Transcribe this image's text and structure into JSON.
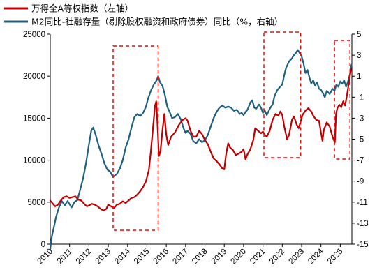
{
  "chart_data": {
    "type": "line",
    "legend": {
      "placement": "top-left",
      "items": [
        {
          "label": "万得全A等权指数（左轴）",
          "color": "#c00000"
        },
        {
          "label": "M2同比-社融存量（剔除股权融资和政府债券）同比（%，右轴）",
          "color": "#1f5f7f"
        }
      ]
    },
    "x_axis": {
      "range": [
        2010,
        2025.6
      ],
      "ticks": [
        "2010",
        "2011",
        "2012",
        "2013",
        "2014",
        "2015",
        "2016",
        "2017",
        "2018",
        "2019",
        "2020",
        "2021",
        "2022",
        "2023",
        "2024",
        "2025"
      ]
    },
    "y_left": {
      "range": [
        0,
        25000
      ],
      "ticks": [
        "0",
        "5000",
        "10000",
        "15000",
        "20000",
        "25000"
      ]
    },
    "y_right": {
      "range": [
        -15,
        5
      ],
      "ticks": [
        "-15",
        "-13",
        "-11",
        "-9",
        "-7",
        "-5",
        "-3",
        "-1",
        "1",
        "3",
        "5"
      ]
    },
    "highlight_periods": [
      {
        "x_start": 2013.25,
        "x_end": 2015.58
      },
      {
        "x_start": 2021.05,
        "x_end": 2022.95
      },
      {
        "x_start": 2024.7,
        "x_end": 2025.5
      }
    ],
    "series": [
      {
        "name": "万得全A等权指数（左轴）",
        "axis": "left",
        "color": "#c00000",
        "points": [
          [
            2010.0,
            5200
          ],
          [
            2010.1,
            4900
          ],
          [
            2010.25,
            4500
          ],
          [
            2010.4,
            4700
          ],
          [
            2010.55,
            5200
          ],
          [
            2010.7,
            5600
          ],
          [
            2010.85,
            5700
          ],
          [
            2011.0,
            5500
          ],
          [
            2011.15,
            5600
          ],
          [
            2011.3,
            5700
          ],
          [
            2011.45,
            5300
          ],
          [
            2011.6,
            5200
          ],
          [
            2011.75,
            4800
          ],
          [
            2011.9,
            4500
          ],
          [
            2012.0,
            4600
          ],
          [
            2012.15,
            4800
          ],
          [
            2012.3,
            4700
          ],
          [
            2012.45,
            4500
          ],
          [
            2012.6,
            4200
          ],
          [
            2012.75,
            4000
          ],
          [
            2012.9,
            4200
          ],
          [
            2013.0,
            4700
          ],
          [
            2013.15,
            4500
          ],
          [
            2013.3,
            4300
          ],
          [
            2013.45,
            4700
          ],
          [
            2013.6,
            4800
          ],
          [
            2013.75,
            5100
          ],
          [
            2013.9,
            4900
          ],
          [
            2014.05,
            5200
          ],
          [
            2014.2,
            5500
          ],
          [
            2014.35,
            5600
          ],
          [
            2014.5,
            5900
          ],
          [
            2014.65,
            6300
          ],
          [
            2014.8,
            6800
          ],
          [
            2014.95,
            7500
          ],
          [
            2015.1,
            8800
          ],
          [
            2015.2,
            11000
          ],
          [
            2015.32,
            14000
          ],
          [
            2015.42,
            16500
          ],
          [
            2015.48,
            17000
          ],
          [
            2015.55,
            14000
          ],
          [
            2015.62,
            10500
          ],
          [
            2015.7,
            11000
          ],
          [
            2015.8,
            13500
          ],
          [
            2015.9,
            15500
          ],
          [
            2016.0,
            13000
          ],
          [
            2016.1,
            11800
          ],
          [
            2016.25,
            12800
          ],
          [
            2016.45,
            13300
          ],
          [
            2016.65,
            14200
          ],
          [
            2016.85,
            14800
          ],
          [
            2017.0,
            15000
          ],
          [
            2017.1,
            14700
          ],
          [
            2017.25,
            13500
          ],
          [
            2017.4,
            12800
          ],
          [
            2017.55,
            12800
          ],
          [
            2017.7,
            13500
          ],
          [
            2017.85,
            13100
          ],
          [
            2018.0,
            12400
          ],
          [
            2018.15,
            11900
          ],
          [
            2018.3,
            11000
          ],
          [
            2018.45,
            10200
          ],
          [
            2018.6,
            9900
          ],
          [
            2018.75,
            9500
          ],
          [
            2018.9,
            9000
          ],
          [
            2019.0,
            8900
          ],
          [
            2019.1,
            10800
          ],
          [
            2019.2,
            12000
          ],
          [
            2019.3,
            11500
          ],
          [
            2019.45,
            11200
          ],
          [
            2019.6,
            10600
          ],
          [
            2019.75,
            10800
          ],
          [
            2019.9,
            11000
          ],
          [
            2020.0,
            11300
          ],
          [
            2020.1,
            10100
          ],
          [
            2020.2,
            10700
          ],
          [
            2020.35,
            11300
          ],
          [
            2020.5,
            12400
          ],
          [
            2020.6,
            13800
          ],
          [
            2020.75,
            13500
          ],
          [
            2020.9,
            13200
          ],
          [
            2021.0,
            13400
          ],
          [
            2021.1,
            13000
          ],
          [
            2021.2,
            12800
          ],
          [
            2021.35,
            13500
          ],
          [
            2021.5,
            14800
          ],
          [
            2021.65,
            15500
          ],
          [
            2021.8,
            15300
          ],
          [
            2021.9,
            15800
          ],
          [
            2022.0,
            15400
          ],
          [
            2022.1,
            14000
          ],
          [
            2022.25,
            12500
          ],
          [
            2022.35,
            13000
          ],
          [
            2022.5,
            14800
          ],
          [
            2022.6,
            15200
          ],
          [
            2022.75,
            14200
          ],
          [
            2022.85,
            13800
          ],
          [
            2022.95,
            14600
          ],
          [
            2023.05,
            15400
          ],
          [
            2023.2,
            15900
          ],
          [
            2023.35,
            16200
          ],
          [
            2023.5,
            15800
          ],
          [
            2023.6,
            15300
          ],
          [
            2023.75,
            14800
          ],
          [
            2023.9,
            14700
          ],
          [
            2024.0,
            13300
          ],
          [
            2024.08,
            12300
          ],
          [
            2024.15,
            13600
          ],
          [
            2024.3,
            14500
          ],
          [
            2024.45,
            14000
          ],
          [
            2024.6,
            12800
          ],
          [
            2024.72,
            12100
          ],
          [
            2024.78,
            15500
          ],
          [
            2024.85,
            16200
          ],
          [
            2024.95,
            16600
          ],
          [
            2025.05,
            16300
          ],
          [
            2025.15,
            17000
          ],
          [
            2025.25,
            16500
          ],
          [
            2025.35,
            17800
          ],
          [
            2025.45,
            19300
          ],
          [
            2025.55,
            20800
          ]
        ]
      },
      {
        "name": "M2同比-社融存量（剔除股权融资和政府债券）同比（%，右轴）",
        "axis": "right",
        "color": "#1f5f7f",
        "points": [
          [
            2010.0,
            -15.5
          ],
          [
            2010.05,
            -14.6
          ],
          [
            2010.1,
            -14.1
          ],
          [
            2010.2,
            -13.3
          ],
          [
            2010.3,
            -12.4
          ],
          [
            2010.45,
            -11.5
          ],
          [
            2010.6,
            -10.9
          ],
          [
            2010.75,
            -11.3
          ],
          [
            2010.9,
            -10.9
          ],
          [
            2011.0,
            -11.2
          ],
          [
            2011.1,
            -11.5
          ],
          [
            2011.25,
            -11.0
          ],
          [
            2011.4,
            -10.8
          ],
          [
            2011.55,
            -9.8
          ],
          [
            2011.7,
            -8.7
          ],
          [
            2011.85,
            -7.3
          ],
          [
            2012.0,
            -5.5
          ],
          [
            2012.12,
            -4.2
          ],
          [
            2012.22,
            -3.9
          ],
          [
            2012.35,
            -4.6
          ],
          [
            2012.5,
            -5.6
          ],
          [
            2012.65,
            -6.4
          ],
          [
            2012.8,
            -7.3
          ],
          [
            2012.95,
            -7.9
          ],
          [
            2013.1,
            -8.1
          ],
          [
            2013.25,
            -8.6
          ],
          [
            2013.45,
            -8.3
          ],
          [
            2013.6,
            -7.8
          ],
          [
            2013.75,
            -7.0
          ],
          [
            2013.9,
            -5.8
          ],
          [
            2014.05,
            -5.0
          ],
          [
            2014.2,
            -3.9
          ],
          [
            2014.35,
            -2.9
          ],
          [
            2014.5,
            -2.6
          ],
          [
            2014.65,
            -2.8
          ],
          [
            2014.8,
            -2.5
          ],
          [
            2014.95,
            -1.9
          ],
          [
            2015.05,
            -1.2
          ],
          [
            2015.2,
            -0.4
          ],
          [
            2015.35,
            0.2
          ],
          [
            2015.5,
            0.6
          ],
          [
            2015.58,
            1.0
          ],
          [
            2015.68,
            0.4
          ],
          [
            2015.8,
            0.1
          ],
          [
            2015.92,
            -0.7
          ],
          [
            2016.05,
            -1.9
          ],
          [
            2016.15,
            -2.3
          ],
          [
            2016.3,
            -3.0
          ],
          [
            2016.45,
            -2.9
          ],
          [
            2016.6,
            -2.6
          ],
          [
            2016.75,
            -3.1
          ],
          [
            2016.9,
            -4.0
          ],
          [
            2017.0,
            -4.4
          ],
          [
            2017.1,
            -4.2
          ],
          [
            2017.25,
            -4.5
          ],
          [
            2017.4,
            -5.2
          ],
          [
            2017.55,
            -5.4
          ],
          [
            2017.7,
            -5.0
          ],
          [
            2017.85,
            -5.3
          ],
          [
            2018.0,
            -5.1
          ],
          [
            2018.15,
            -4.6
          ],
          [
            2018.3,
            -3.8
          ],
          [
            2018.45,
            -3.0
          ],
          [
            2018.6,
            -2.4
          ],
          [
            2018.75,
            -2.0
          ],
          [
            2018.9,
            -1.8
          ],
          [
            2019.05,
            -2.0
          ],
          [
            2019.2,
            -1.9
          ],
          [
            2019.35,
            -2.0
          ],
          [
            2019.5,
            -2.3
          ],
          [
            2019.65,
            -2.2
          ],
          [
            2019.8,
            -2.6
          ],
          [
            2019.9,
            -2.5
          ],
          [
            2020.0,
            -2.7
          ],
          [
            2020.1,
            -2.4
          ],
          [
            2020.2,
            -2.2
          ],
          [
            2020.35,
            -1.5
          ],
          [
            2020.45,
            -1.3
          ],
          [
            2020.55,
            -2.0
          ],
          [
            2020.65,
            -2.1
          ],
          [
            2020.8,
            -1.7
          ],
          [
            2020.9,
            -2.0
          ],
          [
            2021.0,
            -2.5
          ],
          [
            2021.1,
            -2.3
          ],
          [
            2021.2,
            -2.7
          ],
          [
            2021.35,
            -2.1
          ],
          [
            2021.5,
            -1.7
          ],
          [
            2021.6,
            -0.9
          ],
          [
            2021.75,
            -0.3
          ],
          [
            2021.9,
            0.0
          ],
          [
            2022.0,
            0.2
          ],
          [
            2022.1,
            1.1
          ],
          [
            2022.2,
            1.8
          ],
          [
            2022.35,
            2.4
          ],
          [
            2022.5,
            2.7
          ],
          [
            2022.6,
            3.0
          ],
          [
            2022.7,
            3.2
          ],
          [
            2022.8,
            3.5
          ],
          [
            2022.9,
            3.2
          ],
          [
            2023.0,
            2.9
          ],
          [
            2023.1,
            2.2
          ],
          [
            2023.2,
            1.3
          ],
          [
            2023.3,
            1.6
          ],
          [
            2023.4,
            0.9
          ],
          [
            2023.5,
            0.3
          ],
          [
            2023.6,
            0.6
          ],
          [
            2023.7,
            0.1
          ],
          [
            2023.8,
            0.4
          ],
          [
            2023.9,
            -0.2
          ],
          [
            2024.0,
            -0.3
          ],
          [
            2024.1,
            -0.6
          ],
          [
            2024.2,
            -1.0
          ],
          [
            2024.3,
            -0.4
          ],
          [
            2024.45,
            -0.7
          ],
          [
            2024.6,
            -0.2
          ],
          [
            2024.7,
            -0.4
          ],
          [
            2024.8,
            0.2
          ],
          [
            2024.9,
            0.0
          ],
          [
            2025.0,
            0.5
          ],
          [
            2025.1,
            0.3
          ],
          [
            2025.2,
            0.6
          ],
          [
            2025.3,
            0.0
          ],
          [
            2025.4,
            0.5
          ],
          [
            2025.5,
            1.2
          ],
          [
            2025.58,
            2.1
          ]
        ]
      }
    ]
  }
}
